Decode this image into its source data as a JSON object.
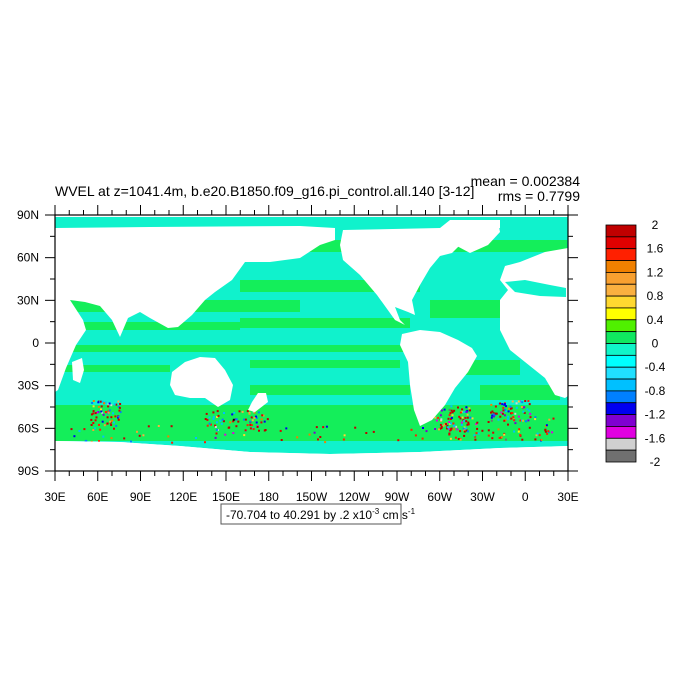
{
  "chart_data": {
    "type": "heatmap",
    "title": "WVEL at z=1041.4m, b.e20.B1850.f09_g16.pi_control.all.140 [3-12]",
    "stats": {
      "mean": "mean = 0.002384",
      "rms": "rms = 0.7799"
    },
    "range_label": {
      "text": "-70.704 to 40.291 by .2 x10",
      "exp": "-3",
      "unit": " cm s",
      "unit_exp": "-1"
    },
    "y_ticks": [
      "90N",
      "60N",
      "30N",
      "0",
      "30S",
      "60S",
      "90S"
    ],
    "x_ticks": [
      "30E",
      "60E",
      "90E",
      "120E",
      "150E",
      "180",
      "150W",
      "120W",
      "90W",
      "60W",
      "30W",
      "0",
      "30E"
    ],
    "xlim": [
      30,
      390
    ],
    "ylim": [
      -90,
      90
    ],
    "colorbar": {
      "labels": [
        "2",
        "1.6",
        "1.2",
        "0.8",
        "0.4",
        "0",
        "-0.4",
        "-0.8",
        "-1.2",
        "-1.6",
        "-2"
      ],
      "colors": [
        "#c00000",
        "#e00000",
        "#ff2000",
        "#f08000",
        "#f8a030",
        "#fab040",
        "#ffd830",
        "#ffff00",
        "#50f000",
        "#10e860",
        "#10f5c8",
        "#00ffff",
        "#20e0ff",
        "#00c0ff",
        "#0080ff",
        "#0000f0",
        "#8000d0",
        "#e000e0",
        "#d0d0d0",
        "#707070"
      ]
    },
    "ocean_colors": {
      "base": "#10f2cc",
      "green": "#14ee5a"
    }
  }
}
